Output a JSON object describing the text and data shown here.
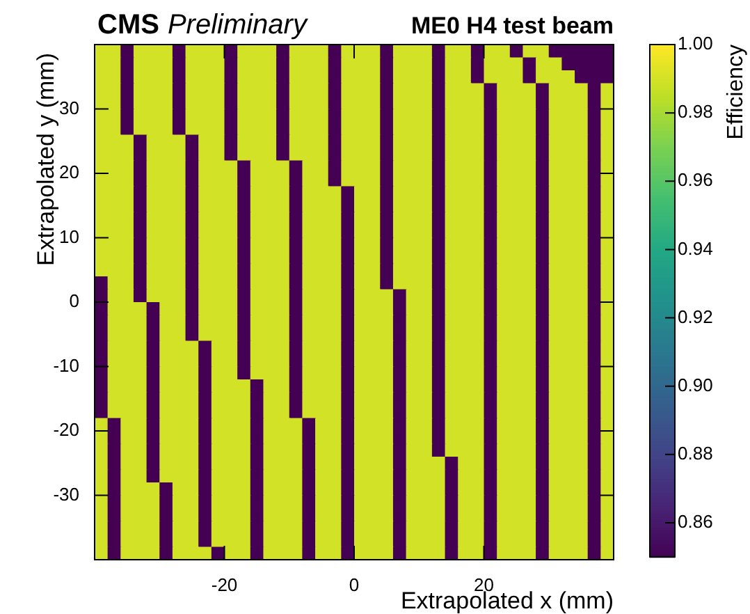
{
  "chart_data": {
    "type": "heatmap",
    "title": "ME0 H4 test beam",
    "annotations": [
      "CMS",
      "Preliminary"
    ],
    "xlabel": "Extrapolated x (mm)",
    "ylabel": "Extrapolated y (mm)",
    "clabel": "Efficiency",
    "xlim": [
      -40,
      40
    ],
    "ylim": [
      -40,
      40
    ],
    "xticks": [
      -20,
      0,
      20
    ],
    "yticks": [
      -30,
      -20,
      -10,
      0,
      10,
      20,
      30
    ],
    "clim": [
      0.85,
      1.0
    ],
    "cticks": [
      {
        "value": 0.86,
        "label": "0.86"
      },
      {
        "value": 0.88,
        "label": "0.88"
      },
      {
        "value": 0.9,
        "label": "0.90"
      },
      {
        "value": 0.92,
        "label": "0.92"
      },
      {
        "value": 0.94,
        "label": "0.94"
      },
      {
        "value": 0.96,
        "label": "0.96"
      },
      {
        "value": 0.98,
        "label": "0.98"
      },
      {
        "value": 1.0,
        "label": "1.00"
      }
    ],
    "cells": [
      [
        0.99,
        0.99,
        0.85,
        0.99,
        0.99,
        0.99,
        0.85,
        0.99,
        0.99,
        0.99,
        0.85,
        0.99,
        0.99,
        0.99,
        0.85,
        0.99,
        0.99,
        0.99,
        0.85,
        0.99,
        0.99,
        0.99,
        0.85,
        0.99,
        0.99,
        0.99,
        0.85,
        0.99,
        0.99,
        0.85,
        0.99,
        0.99,
        0.85,
        0.99,
        0.99,
        0.85,
        0.85,
        0.85,
        0.85,
        0.85
      ],
      [
        0.99,
        0.99,
        0.85,
        0.99,
        0.99,
        0.99,
        0.85,
        0.99,
        0.99,
        0.99,
        0.85,
        0.99,
        0.99,
        0.99,
        0.85,
        0.99,
        0.99,
        0.99,
        0.85,
        0.99,
        0.99,
        0.99,
        0.85,
        0.99,
        0.99,
        0.99,
        0.85,
        0.99,
        0.99,
        0.85,
        0.99,
        0.99,
        0.99,
        0.85,
        0.99,
        0.99,
        0.85,
        0.85,
        0.85,
        0.85
      ],
      [
        0.99,
        0.99,
        0.85,
        0.99,
        0.99,
        0.99,
        0.85,
        0.99,
        0.99,
        0.99,
        0.85,
        0.99,
        0.99,
        0.99,
        0.85,
        0.99,
        0.99,
        0.99,
        0.85,
        0.99,
        0.99,
        0.99,
        0.85,
        0.99,
        0.99,
        0.99,
        0.85,
        0.99,
        0.99,
        0.85,
        0.99,
        0.99,
        0.99,
        0.85,
        0.99,
        0.99,
        0.99,
        0.85,
        0.85,
        0.85
      ],
      [
        0.99,
        0.99,
        0.85,
        0.99,
        0.99,
        0.99,
        0.85,
        0.99,
        0.99,
        0.99,
        0.85,
        0.99,
        0.99,
        0.99,
        0.85,
        0.99,
        0.99,
        0.99,
        0.85,
        0.99,
        0.99,
        0.99,
        0.85,
        0.99,
        0.99,
        0.99,
        0.85,
        0.99,
        0.99,
        0.99,
        0.85,
        0.99,
        0.99,
        0.99,
        0.85,
        0.99,
        0.99,
        0.99,
        0.85,
        0.99
      ],
      [
        0.99,
        0.99,
        0.85,
        0.99,
        0.99,
        0.99,
        0.85,
        0.99,
        0.99,
        0.99,
        0.85,
        0.99,
        0.99,
        0.99,
        0.85,
        0.99,
        0.99,
        0.99,
        0.85,
        0.99,
        0.99,
        0.99,
        0.85,
        0.99,
        0.99,
        0.99,
        0.85,
        0.99,
        0.99,
        0.99,
        0.85,
        0.99,
        0.99,
        0.99,
        0.85,
        0.99,
        0.99,
        0.99,
        0.85,
        0.99
      ],
      [
        0.99,
        0.99,
        0.85,
        0.99,
        0.99,
        0.99,
        0.85,
        0.99,
        0.99,
        0.99,
        0.85,
        0.99,
        0.99,
        0.99,
        0.85,
        0.99,
        0.99,
        0.99,
        0.85,
        0.99,
        0.99,
        0.99,
        0.85,
        0.99,
        0.99,
        0.99,
        0.85,
        0.99,
        0.99,
        0.99,
        0.85,
        0.99,
        0.99,
        0.99,
        0.85,
        0.99,
        0.99,
        0.99,
        0.85,
        0.99
      ],
      [
        0.99,
        0.99,
        0.85,
        0.99,
        0.99,
        0.99,
        0.85,
        0.99,
        0.99,
        0.99,
        0.85,
        0.99,
        0.99,
        0.99,
        0.85,
        0.99,
        0.99,
        0.99,
        0.85,
        0.99,
        0.99,
        0.99,
        0.85,
        0.99,
        0.99,
        0.99,
        0.85,
        0.99,
        0.99,
        0.99,
        0.85,
        0.99,
        0.99,
        0.99,
        0.85,
        0.99,
        0.99,
        0.99,
        0.85,
        0.99
      ],
      [
        0.99,
        0.99,
        0.99,
        0.85,
        0.99,
        0.99,
        0.99,
        0.85,
        0.99,
        0.99,
        0.85,
        0.99,
        0.99,
        0.99,
        0.85,
        0.99,
        0.99,
        0.99,
        0.85,
        0.99,
        0.99,
        0.99,
        0.85,
        0.99,
        0.99,
        0.99,
        0.85,
        0.99,
        0.99,
        0.99,
        0.85,
        0.99,
        0.99,
        0.99,
        0.85,
        0.99,
        0.99,
        0.99,
        0.85,
        0.99
      ],
      [
        0.99,
        0.99,
        0.99,
        0.85,
        0.99,
        0.99,
        0.99,
        0.85,
        0.99,
        0.99,
        0.85,
        0.99,
        0.99,
        0.99,
        0.85,
        0.99,
        0.99,
        0.99,
        0.85,
        0.99,
        0.99,
        0.99,
        0.85,
        0.99,
        0.99,
        0.99,
        0.85,
        0.99,
        0.99,
        0.99,
        0.85,
        0.99,
        0.99,
        0.99,
        0.85,
        0.99,
        0.99,
        0.99,
        0.85,
        0.99
      ],
      [
        0.99,
        0.99,
        0.99,
        0.85,
        0.99,
        0.99,
        0.99,
        0.85,
        0.99,
        0.99,
        0.99,
        0.85,
        0.99,
        0.99,
        0.99,
        0.85,
        0.99,
        0.99,
        0.85,
        0.99,
        0.99,
        0.99,
        0.85,
        0.99,
        0.99,
        0.99,
        0.85,
        0.99,
        0.99,
        0.99,
        0.85,
        0.99,
        0.99,
        0.99,
        0.85,
        0.99,
        0.99,
        0.99,
        0.85,
        0.99
      ],
      [
        0.99,
        0.99,
        0.99,
        0.85,
        0.99,
        0.99,
        0.99,
        0.85,
        0.99,
        0.99,
        0.99,
        0.85,
        0.99,
        0.99,
        0.99,
        0.85,
        0.99,
        0.99,
        0.85,
        0.99,
        0.99,
        0.99,
        0.85,
        0.99,
        0.99,
        0.99,
        0.85,
        0.99,
        0.99,
        0.99,
        0.85,
        0.99,
        0.99,
        0.99,
        0.85,
        0.99,
        0.99,
        0.99,
        0.85,
        0.99
      ],
      [
        0.99,
        0.99,
        0.99,
        0.85,
        0.99,
        0.99,
        0.99,
        0.85,
        0.99,
        0.99,
        0.99,
        0.85,
        0.99,
        0.99,
        0.99,
        0.85,
        0.99,
        0.99,
        0.99,
        0.85,
        0.99,
        0.99,
        0.85,
        0.99,
        0.99,
        0.99,
        0.85,
        0.99,
        0.99,
        0.99,
        0.85,
        0.99,
        0.99,
        0.99,
        0.85,
        0.99,
        0.99,
        0.99,
        0.85,
        0.99
      ],
      [
        0.99,
        0.99,
        0.99,
        0.85,
        0.99,
        0.99,
        0.99,
        0.85,
        0.99,
        0.99,
        0.99,
        0.85,
        0.99,
        0.99,
        0.99,
        0.85,
        0.99,
        0.99,
        0.99,
        0.85,
        0.99,
        0.99,
        0.85,
        0.99,
        0.99,
        0.99,
        0.85,
        0.99,
        0.99,
        0.99,
        0.85,
        0.99,
        0.99,
        0.99,
        0.85,
        0.99,
        0.99,
        0.99,
        0.85,
        0.99
      ],
      [
        0.99,
        0.99,
        0.99,
        0.85,
        0.99,
        0.99,
        0.99,
        0.85,
        0.99,
        0.99,
        0.99,
        0.85,
        0.99,
        0.99,
        0.99,
        0.85,
        0.99,
        0.99,
        0.99,
        0.85,
        0.99,
        0.99,
        0.85,
        0.99,
        0.99,
        0.99,
        0.85,
        0.99,
        0.99,
        0.99,
        0.85,
        0.99,
        0.99,
        0.99,
        0.85,
        0.99,
        0.99,
        0.99,
        0.85,
        0.99
      ],
      [
        0.99,
        0.99,
        0.99,
        0.85,
        0.99,
        0.99,
        0.99,
        0.85,
        0.99,
        0.99,
        0.99,
        0.85,
        0.99,
        0.99,
        0.99,
        0.85,
        0.99,
        0.99,
        0.99,
        0.85,
        0.99,
        0.99,
        0.85,
        0.99,
        0.99,
        0.99,
        0.85,
        0.99,
        0.99,
        0.99,
        0.85,
        0.99,
        0.99,
        0.99,
        0.85,
        0.99,
        0.99,
        0.99,
        0.85,
        0.99
      ],
      [
        0.99,
        0.99,
        0.99,
        0.85,
        0.99,
        0.99,
        0.99,
        0.85,
        0.99,
        0.99,
        0.99,
        0.85,
        0.99,
        0.99,
        0.99,
        0.85,
        0.99,
        0.99,
        0.99,
        0.85,
        0.99,
        0.99,
        0.85,
        0.99,
        0.99,
        0.99,
        0.85,
        0.99,
        0.99,
        0.99,
        0.85,
        0.99,
        0.99,
        0.99,
        0.85,
        0.99,
        0.99,
        0.99,
        0.85,
        0.99
      ],
      [
        0.99,
        0.99,
        0.99,
        0.85,
        0.99,
        0.99,
        0.99,
        0.85,
        0.99,
        0.99,
        0.99,
        0.85,
        0.99,
        0.99,
        0.99,
        0.85,
        0.99,
        0.99,
        0.99,
        0.85,
        0.99,
        0.99,
        0.85,
        0.99,
        0.99,
        0.99,
        0.85,
        0.99,
        0.99,
        0.99,
        0.85,
        0.99,
        0.99,
        0.99,
        0.85,
        0.99,
        0.99,
        0.99,
        0.85,
        0.99
      ],
      [
        0.99,
        0.99,
        0.99,
        0.85,
        0.99,
        0.99,
        0.99,
        0.85,
        0.99,
        0.99,
        0.99,
        0.85,
        0.99,
        0.99,
        0.99,
        0.85,
        0.99,
        0.99,
        0.99,
        0.85,
        0.99,
        0.99,
        0.85,
        0.99,
        0.99,
        0.99,
        0.85,
        0.99,
        0.99,
        0.99,
        0.85,
        0.99,
        0.99,
        0.99,
        0.85,
        0.99,
        0.99,
        0.99,
        0.85,
        0.99
      ],
      [
        0.85,
        0.99,
        0.99,
        0.85,
        0.99,
        0.99,
        0.99,
        0.85,
        0.99,
        0.99,
        0.99,
        0.85,
        0.99,
        0.99,
        0.99,
        0.85,
        0.99,
        0.99,
        0.99,
        0.85,
        0.99,
        0.99,
        0.85,
        0.99,
        0.99,
        0.99,
        0.85,
        0.99,
        0.99,
        0.99,
        0.85,
        0.99,
        0.99,
        0.99,
        0.85,
        0.99,
        0.99,
        0.99,
        0.85,
        0.99
      ],
      [
        0.85,
        0.99,
        0.99,
        0.85,
        0.99,
        0.99,
        0.99,
        0.85,
        0.99,
        0.99,
        0.99,
        0.85,
        0.99,
        0.99,
        0.99,
        0.85,
        0.99,
        0.99,
        0.99,
        0.85,
        0.99,
        0.99,
        0.99,
        0.85,
        0.99,
        0.99,
        0.85,
        0.99,
        0.99,
        0.99,
        0.85,
        0.99,
        0.99,
        0.99,
        0.85,
        0.99,
        0.99,
        0.99,
        0.85,
        0.99
      ],
      [
        0.85,
        0.99,
        0.99,
        0.99,
        0.85,
        0.99,
        0.99,
        0.85,
        0.99,
        0.99,
        0.99,
        0.85,
        0.99,
        0.99,
        0.99,
        0.85,
        0.99,
        0.99,
        0.99,
        0.85,
        0.99,
        0.99,
        0.99,
        0.85,
        0.99,
        0.99,
        0.85,
        0.99,
        0.99,
        0.99,
        0.85,
        0.99,
        0.99,
        0.99,
        0.85,
        0.99,
        0.99,
        0.99,
        0.85,
        0.99
      ],
      [
        0.85,
        0.99,
        0.99,
        0.99,
        0.85,
        0.99,
        0.99,
        0.85,
        0.99,
        0.99,
        0.99,
        0.85,
        0.99,
        0.99,
        0.99,
        0.85,
        0.99,
        0.99,
        0.99,
        0.85,
        0.99,
        0.99,
        0.99,
        0.85,
        0.99,
        0.99,
        0.85,
        0.99,
        0.99,
        0.99,
        0.85,
        0.99,
        0.99,
        0.99,
        0.85,
        0.99,
        0.99,
        0.99,
        0.85,
        0.99
      ],
      [
        0.85,
        0.99,
        0.99,
        0.99,
        0.85,
        0.99,
        0.99,
        0.85,
        0.99,
        0.99,
        0.99,
        0.85,
        0.99,
        0.99,
        0.99,
        0.85,
        0.99,
        0.99,
        0.99,
        0.85,
        0.99,
        0.99,
        0.99,
        0.85,
        0.99,
        0.99,
        0.85,
        0.99,
        0.99,
        0.99,
        0.85,
        0.99,
        0.99,
        0.99,
        0.85,
        0.99,
        0.99,
        0.99,
        0.85,
        0.99
      ],
      [
        0.85,
        0.99,
        0.99,
        0.99,
        0.85,
        0.99,
        0.99,
        0.99,
        0.85,
        0.99,
        0.99,
        0.85,
        0.99,
        0.99,
        0.99,
        0.85,
        0.99,
        0.99,
        0.99,
        0.85,
        0.99,
        0.99,
        0.99,
        0.85,
        0.99,
        0.99,
        0.85,
        0.99,
        0.99,
        0.99,
        0.85,
        0.99,
        0.99,
        0.99,
        0.85,
        0.99,
        0.99,
        0.99,
        0.85,
        0.99
      ],
      [
        0.85,
        0.99,
        0.99,
        0.99,
        0.85,
        0.99,
        0.99,
        0.99,
        0.85,
        0.99,
        0.99,
        0.85,
        0.99,
        0.99,
        0.99,
        0.85,
        0.99,
        0.99,
        0.99,
        0.85,
        0.99,
        0.99,
        0.99,
        0.85,
        0.99,
        0.99,
        0.85,
        0.99,
        0.99,
        0.99,
        0.85,
        0.99,
        0.99,
        0.99,
        0.85,
        0.99,
        0.99,
        0.99,
        0.85,
        0.99
      ],
      [
        0.85,
        0.99,
        0.99,
        0.99,
        0.85,
        0.99,
        0.99,
        0.99,
        0.85,
        0.99,
        0.99,
        0.85,
        0.99,
        0.99,
        0.99,
        0.85,
        0.99,
        0.99,
        0.99,
        0.85,
        0.99,
        0.99,
        0.99,
        0.85,
        0.99,
        0.99,
        0.85,
        0.99,
        0.99,
        0.99,
        0.85,
        0.99,
        0.99,
        0.99,
        0.85,
        0.99,
        0.99,
        0.99,
        0.85,
        0.99
      ],
      [
        0.85,
        0.99,
        0.99,
        0.99,
        0.85,
        0.99,
        0.99,
        0.99,
        0.85,
        0.99,
        0.99,
        0.99,
        0.85,
        0.99,
        0.99,
        0.85,
        0.99,
        0.99,
        0.99,
        0.85,
        0.99,
        0.99,
        0.99,
        0.85,
        0.99,
        0.99,
        0.85,
        0.99,
        0.99,
        0.99,
        0.85,
        0.99,
        0.99,
        0.99,
        0.85,
        0.99,
        0.99,
        0.99,
        0.85,
        0.99
      ],
      [
        0.85,
        0.99,
        0.99,
        0.99,
        0.85,
        0.99,
        0.99,
        0.99,
        0.85,
        0.99,
        0.99,
        0.99,
        0.85,
        0.99,
        0.99,
        0.85,
        0.99,
        0.99,
        0.99,
        0.85,
        0.99,
        0.99,
        0.99,
        0.85,
        0.99,
        0.99,
        0.85,
        0.99,
        0.99,
        0.99,
        0.85,
        0.99,
        0.99,
        0.99,
        0.85,
        0.99,
        0.99,
        0.99,
        0.85,
        0.99
      ],
      [
        0.85,
        0.99,
        0.99,
        0.99,
        0.85,
        0.99,
        0.99,
        0.99,
        0.85,
        0.99,
        0.99,
        0.99,
        0.85,
        0.99,
        0.99,
        0.85,
        0.99,
        0.99,
        0.99,
        0.85,
        0.99,
        0.99,
        0.99,
        0.85,
        0.99,
        0.99,
        0.85,
        0.99,
        0.99,
        0.99,
        0.85,
        0.99,
        0.99,
        0.99,
        0.85,
        0.99,
        0.99,
        0.99,
        0.85,
        0.99
      ],
      [
        0.99,
        0.85,
        0.99,
        0.99,
        0.85,
        0.99,
        0.99,
        0.99,
        0.85,
        0.99,
        0.99,
        0.99,
        0.85,
        0.99,
        0.99,
        0.99,
        0.85,
        0.99,
        0.99,
        0.85,
        0.99,
        0.99,
        0.99,
        0.85,
        0.99,
        0.99,
        0.85,
        0.99,
        0.99,
        0.99,
        0.85,
        0.99,
        0.99,
        0.99,
        0.85,
        0.99,
        0.99,
        0.99,
        0.85,
        0.99
      ],
      [
        0.99,
        0.85,
        0.99,
        0.99,
        0.85,
        0.99,
        0.99,
        0.99,
        0.85,
        0.99,
        0.99,
        0.99,
        0.85,
        0.99,
        0.99,
        0.99,
        0.85,
        0.99,
        0.99,
        0.85,
        0.99,
        0.99,
        0.99,
        0.85,
        0.99,
        0.99,
        0.85,
        0.99,
        0.99,
        0.99,
        0.85,
        0.99,
        0.99,
        0.99,
        0.85,
        0.99,
        0.99,
        0.99,
        0.85,
        0.99
      ],
      [
        0.99,
        0.85,
        0.99,
        0.99,
        0.85,
        0.99,
        0.99,
        0.99,
        0.85,
        0.99,
        0.99,
        0.99,
        0.85,
        0.99,
        0.99,
        0.99,
        0.85,
        0.99,
        0.99,
        0.85,
        0.99,
        0.99,
        0.99,
        0.85,
        0.99,
        0.99,
        0.85,
        0.99,
        0.99,
        0.99,
        0.85,
        0.99,
        0.99,
        0.99,
        0.85,
        0.99,
        0.99,
        0.99,
        0.85,
        0.99
      ],
      [
        0.99,
        0.85,
        0.99,
        0.99,
        0.85,
        0.99,
        0.99,
        0.99,
        0.85,
        0.99,
        0.99,
        0.99,
        0.85,
        0.99,
        0.99,
        0.99,
        0.85,
        0.99,
        0.99,
        0.85,
        0.99,
        0.99,
        0.99,
        0.85,
        0.99,
        0.99,
        0.99,
        0.85,
        0.99,
        0.99,
        0.85,
        0.99,
        0.99,
        0.99,
        0.85,
        0.99,
        0.99,
        0.99,
        0.85,
        0.99
      ],
      [
        0.99,
        0.85,
        0.99,
        0.99,
        0.85,
        0.99,
        0.99,
        0.99,
        0.85,
        0.99,
        0.99,
        0.99,
        0.85,
        0.99,
        0.99,
        0.99,
        0.85,
        0.99,
        0.99,
        0.85,
        0.99,
        0.99,
        0.99,
        0.85,
        0.99,
        0.99,
        0.99,
        0.85,
        0.99,
        0.99,
        0.85,
        0.99,
        0.99,
        0.99,
        0.85,
        0.99,
        0.99,
        0.99,
        0.85,
        0.99
      ],
      [
        0.99,
        0.85,
        0.99,
        0.99,
        0.99,
        0.85,
        0.99,
        0.99,
        0.85,
        0.99,
        0.99,
        0.99,
        0.85,
        0.99,
        0.99,
        0.99,
        0.85,
        0.99,
        0.99,
        0.85,
        0.99,
        0.99,
        0.99,
        0.85,
        0.99,
        0.99,
        0.99,
        0.85,
        0.99,
        0.99,
        0.85,
        0.99,
        0.99,
        0.99,
        0.85,
        0.99,
        0.99,
        0.99,
        0.85,
        0.99
      ],
      [
        0.99,
        0.85,
        0.99,
        0.99,
        0.99,
        0.85,
        0.99,
        0.99,
        0.85,
        0.99,
        0.99,
        0.99,
        0.85,
        0.99,
        0.99,
        0.99,
        0.85,
        0.99,
        0.99,
        0.85,
        0.99,
        0.99,
        0.99,
        0.85,
        0.99,
        0.99,
        0.99,
        0.85,
        0.99,
        0.99,
        0.85,
        0.99,
        0.99,
        0.99,
        0.85,
        0.99,
        0.99,
        0.99,
        0.85,
        0.99
      ],
      [
        0.99,
        0.85,
        0.99,
        0.99,
        0.99,
        0.85,
        0.99,
        0.99,
        0.85,
        0.99,
        0.99,
        0.99,
        0.85,
        0.99,
        0.99,
        0.99,
        0.85,
        0.99,
        0.99,
        0.85,
        0.99,
        0.99,
        0.99,
        0.85,
        0.99,
        0.99,
        0.99,
        0.85,
        0.99,
        0.99,
        0.85,
        0.99,
        0.99,
        0.99,
        0.85,
        0.99,
        0.99,
        0.99,
        0.85,
        0.99
      ],
      [
        0.99,
        0.85,
        0.99,
        0.99,
        0.99,
        0.85,
        0.99,
        0.99,
        0.85,
        0.99,
        0.99,
        0.99,
        0.85,
        0.99,
        0.99,
        0.99,
        0.85,
        0.99,
        0.99,
        0.85,
        0.99,
        0.99,
        0.99,
        0.85,
        0.99,
        0.99,
        0.99,
        0.85,
        0.99,
        0.99,
        0.85,
        0.99,
        0.99,
        0.99,
        0.85,
        0.99,
        0.99,
        0.99,
        0.85,
        0.99
      ],
      [
        0.99,
        0.85,
        0.99,
        0.99,
        0.99,
        0.85,
        0.99,
        0.99,
        0.85,
        0.99,
        0.99,
        0.99,
        0.85,
        0.99,
        0.99,
        0.99,
        0.85,
        0.99,
        0.99,
        0.85,
        0.99,
        0.99,
        0.99,
        0.85,
        0.99,
        0.99,
        0.99,
        0.85,
        0.99,
        0.99,
        0.85,
        0.99,
        0.99,
        0.99,
        0.85,
        0.99,
        0.99,
        0.99,
        0.85,
        0.99
      ],
      [
        0.99,
        0.85,
        0.99,
        0.99,
        0.99,
        0.85,
        0.99,
        0.99,
        0.99,
        0.85,
        0.99,
        0.99,
        0.85,
        0.99,
        0.99,
        0.99,
        0.85,
        0.99,
        0.99,
        0.85,
        0.99,
        0.99,
        0.99,
        0.85,
        0.99,
        0.99,
        0.99,
        0.85,
        0.99,
        0.99,
        0.85,
        0.99,
        0.99,
        0.99,
        0.85,
        0.99,
        0.99,
        0.99,
        0.85,
        0.99
      ]
    ]
  }
}
